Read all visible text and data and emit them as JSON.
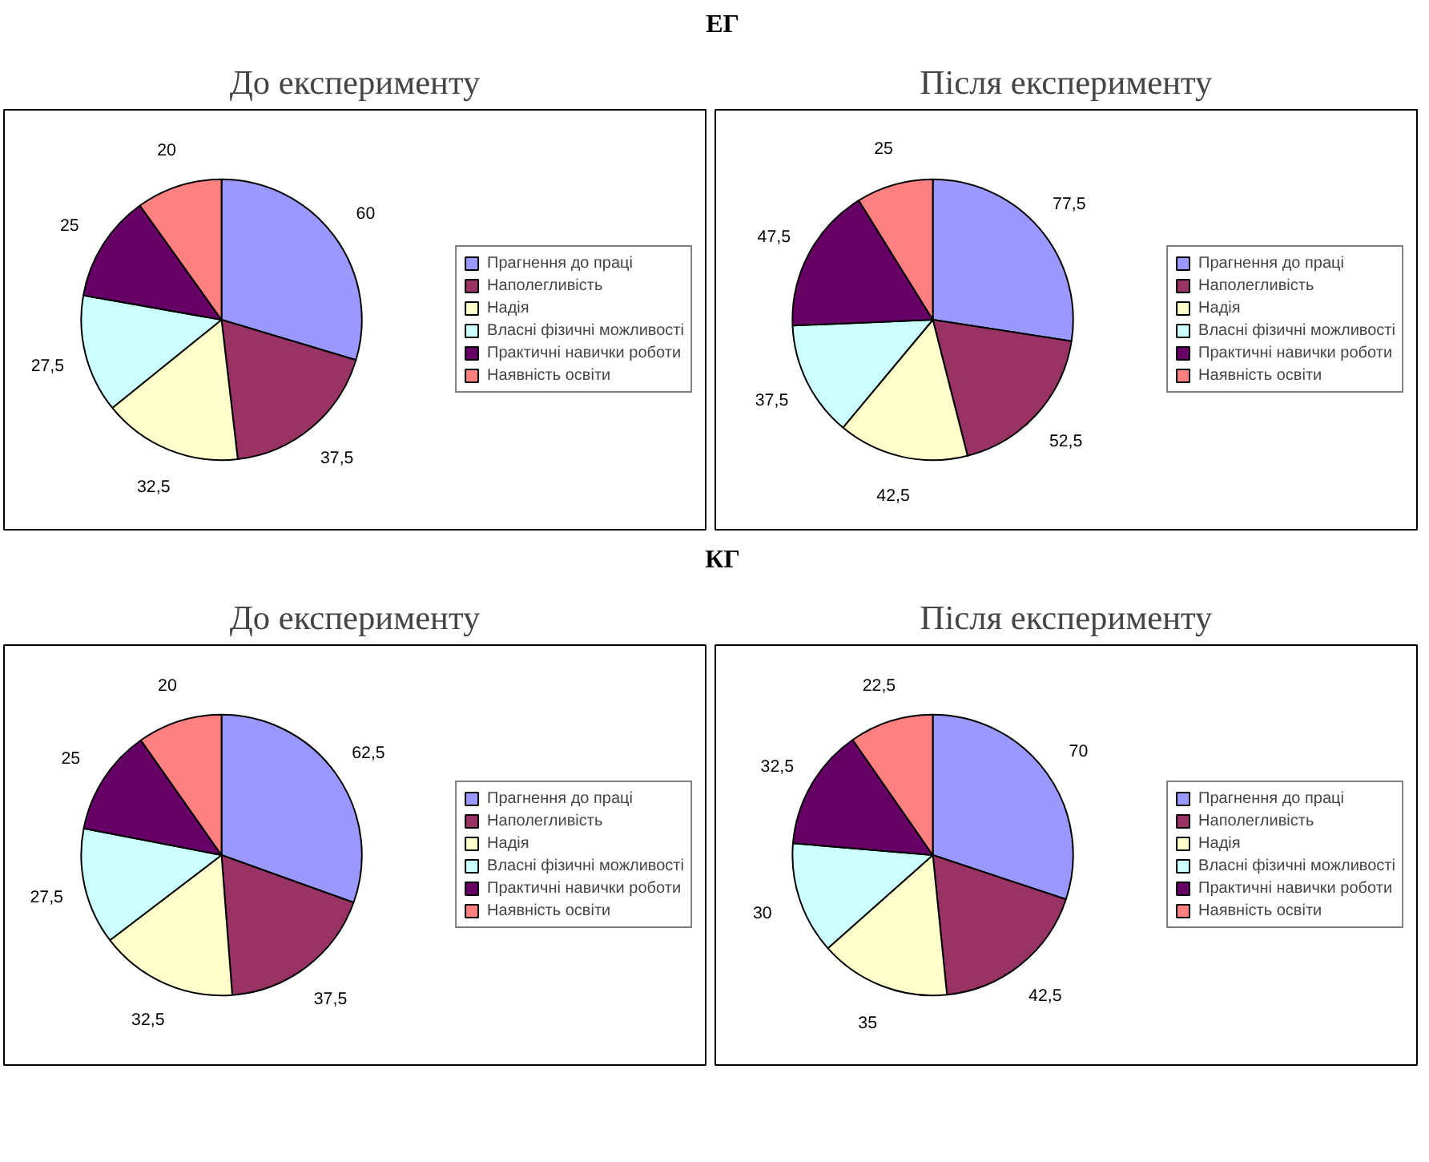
{
  "chart_data": [
    {
      "type": "pie",
      "title": "До експерименту",
      "annotations": [
        "ЕГ"
      ],
      "legend": "right",
      "categories": [
        "Прагнення до праці",
        "Наполегливість",
        "Надія",
        "Власні фізичні можливості",
        "Практичні навички роботи",
        "Наявність освіти"
      ],
      "values": [
        60,
        37.5,
        32.5,
        27.5,
        25,
        20
      ],
      "value_labels": [
        "60",
        "37,5",
        "32,5",
        "27,5",
        "25",
        "20"
      ],
      "colors": [
        "#9999ff",
        "#993366",
        "#ffffcc",
        "#ccffff",
        "#660066",
        "#ff8080"
      ]
    },
    {
      "type": "pie",
      "title": "Після експерименту",
      "legend": "right",
      "categories": [
        "Прагнення до праці",
        "Наполегливість",
        "Надія",
        "Власні фізичні можливості",
        "Практичні навички роботи",
        "Наявність освіти"
      ],
      "values": [
        77.5,
        52.5,
        42.5,
        37.5,
        47.5,
        25
      ],
      "value_labels": [
        "77,5",
        "52,5",
        "42,5",
        "37,5",
        "47,5",
        "25"
      ],
      "colors": [
        "#9999ff",
        "#993366",
        "#ffffcc",
        "#ccffff",
        "#660066",
        "#ff8080"
      ]
    },
    {
      "type": "pie",
      "title": "До експерименту",
      "annotations": [
        "КГ"
      ],
      "legend": "right",
      "categories": [
        "Прагнення до праці",
        "Наполегливість",
        "Надія",
        "Власні фізичні можливості",
        "Практичні навички роботи",
        "Наявність освіти"
      ],
      "values": [
        62.5,
        37.5,
        32.5,
        27.5,
        25,
        20
      ],
      "value_labels": [
        "62,5",
        "37,5",
        "32,5",
        "27,5",
        "25",
        "20"
      ],
      "colors": [
        "#9999ff",
        "#993366",
        "#ffffcc",
        "#ccffff",
        "#660066",
        "#ff8080"
      ]
    },
    {
      "type": "pie",
      "title": "Після експерименту",
      "legend": "right",
      "categories": [
        "Прагнення до праці",
        "Наполегливість",
        "Надія",
        "Власні фізичні можливості",
        "Практичні навички роботи",
        "Наявність освіти"
      ],
      "values": [
        70,
        42.5,
        35,
        30,
        32.5,
        22.5
      ],
      "value_labels": [
        "70",
        "42,5",
        "35",
        "30",
        "32,5",
        "22,5"
      ],
      "colors": [
        "#9999ff",
        "#993366",
        "#ffffcc",
        "#ccffff",
        "#660066",
        "#ff8080"
      ]
    }
  ]
}
